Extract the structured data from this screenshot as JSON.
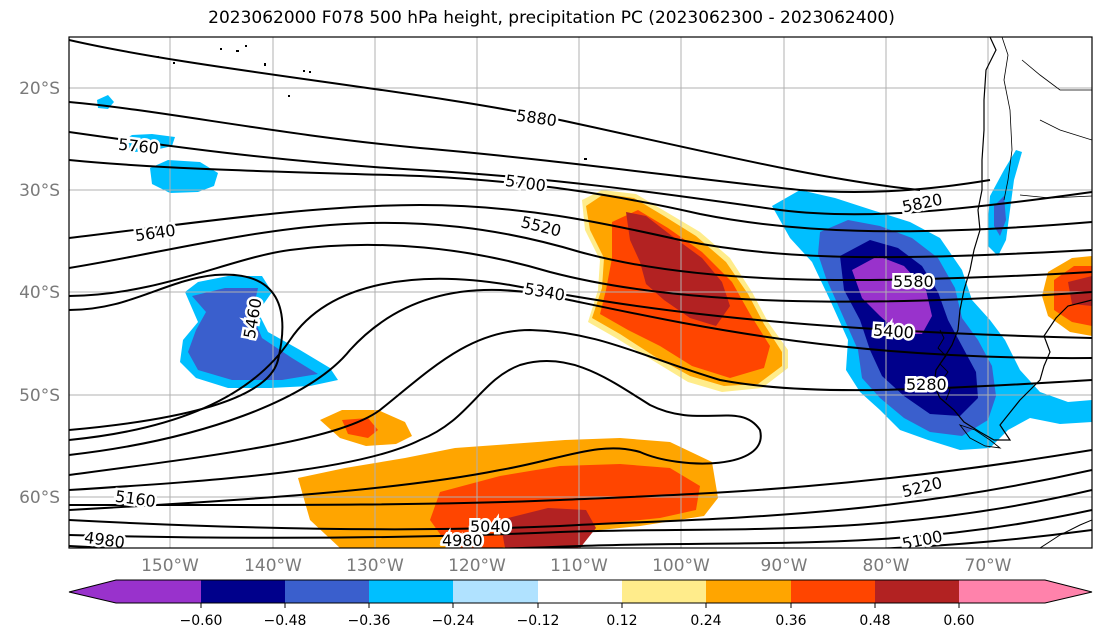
{
  "title": "2023062000 F078 500 hPa height, precipitation PC (2023062300 - 2023062400)",
  "lat_labels": [
    "20°S",
    "30°S",
    "40°S",
    "50°S",
    "60°S"
  ],
  "lon_labels": [
    "150°W",
    "140°W",
    "130°W",
    "120°W",
    "110°W",
    "100°W",
    "90°W",
    "80°W",
    "70°W"
  ],
  "contour_labels": [
    "5880",
    "5760",
    "5700",
    "5520",
    "5640",
    "5820",
    "5580",
    "5340",
    "5400",
    "5460",
    "5280",
    "5220",
    "5160",
    "5040",
    "4980",
    "4980",
    "5100"
  ],
  "colorbar": {
    "ticks": [
      "−0.60",
      "−0.48",
      "−0.36",
      "−0.24",
      "−0.12",
      "0.12",
      "0.24",
      "0.36",
      "0.48",
      "0.60"
    ],
    "colors": [
      "#9932cc",
      "#00008b",
      "#3a5fcd",
      "#00bfff",
      "#b0e2ff",
      "#ffffff",
      "#ffec8b",
      "#ffa500",
      "#ff4500",
      "#b22222",
      "#ff82ab"
    ]
  },
  "colors": {
    "contour": "#000000",
    "grid": "#b0b0b0",
    "coast": "#000000"
  }
}
